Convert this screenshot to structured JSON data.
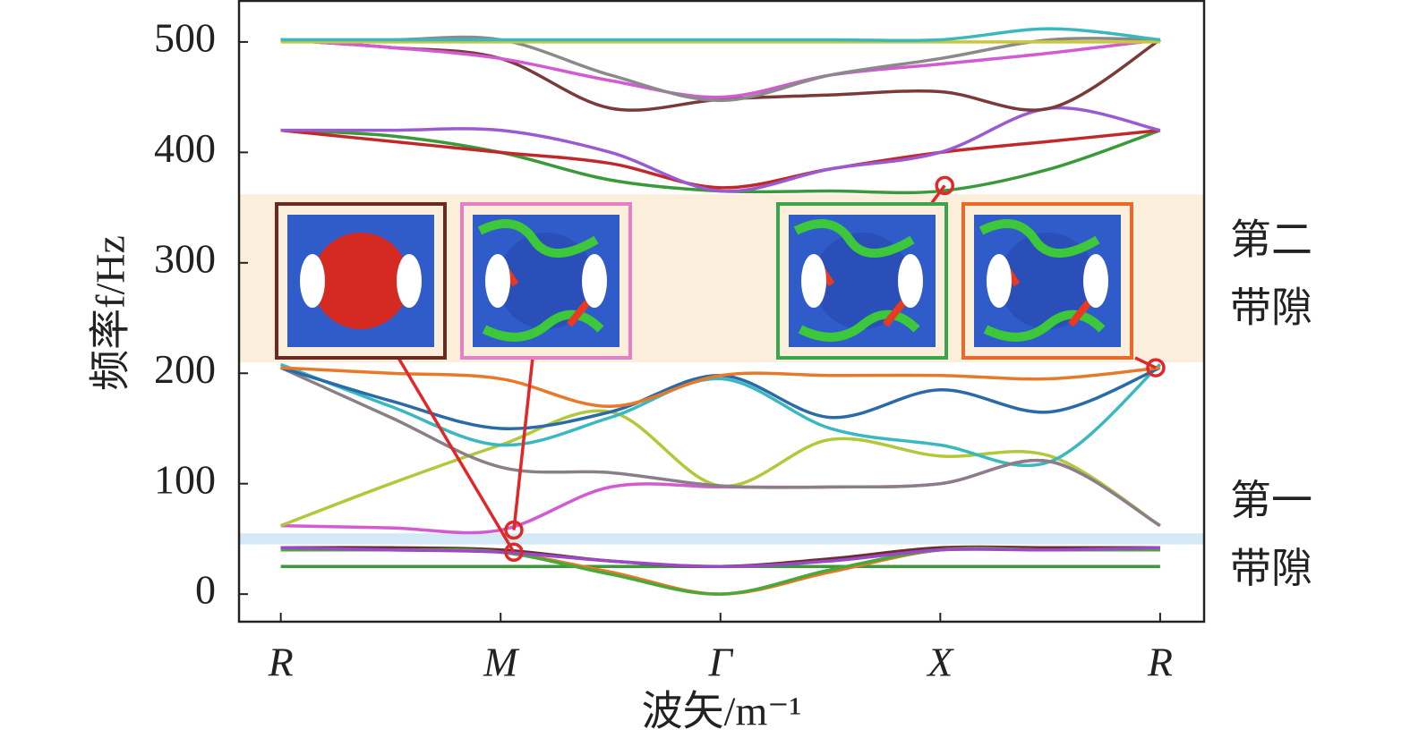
{
  "chart_data": {
    "type": "line",
    "y_label": "频率f/Hz",
    "x_label": "波矢/m⁻¹",
    "x": [
      0,
      0.5,
      1,
      1.5,
      2,
      2.5,
      3,
      3.5,
      4
    ],
    "xlim": [
      -0.19,
      4.2
    ],
    "ylim": [
      -25,
      538
    ],
    "xticks": [
      {
        "value": 0,
        "label": "R"
      },
      {
        "value": 1,
        "label": "M"
      },
      {
        "value": 2,
        "label": "Γ"
      },
      {
        "value": 3,
        "label": "X"
      },
      {
        "value": 4,
        "label": "R"
      }
    ],
    "yticks": [
      0,
      100,
      200,
      300,
      400,
      500
    ],
    "bands": [
      {
        "range": [
          45,
          55
        ],
        "color": "#d3e9f6",
        "label_lines": [
          "第一",
          "带隙"
        ]
      },
      {
        "range": [
          210,
          362
        ],
        "color": "#fbeedb",
        "label_lines": [
          "第二",
          "带隙"
        ]
      }
    ],
    "markers": [
      {
        "x": 1.06,
        "y": 38,
        "color": "#6b2a1f"
      },
      {
        "x": 1.06,
        "y": 58,
        "color": "#e47fc8"
      },
      {
        "x": 3.02,
        "y": 370,
        "color": "#3aa54a"
      },
      {
        "x": 3.98,
        "y": 205,
        "color": "#e8692a"
      }
    ],
    "series": [
      {
        "color": "#3a9a3a",
        "values": [
          25,
          25,
          25,
          25,
          25,
          25,
          25,
          25,
          25
        ]
      },
      {
        "color": "#6a2e2e",
        "values": [
          42,
          42,
          40,
          30,
          25,
          32,
          42,
          42,
          42
        ]
      },
      {
        "color": "#e8792a",
        "values": [
          40,
          40,
          38,
          20,
          0,
          20,
          40,
          40,
          40
        ]
      },
      {
        "color": "#4aa83a",
        "values": [
          40,
          40,
          38,
          18,
          0,
          22,
          40,
          40,
          40
        ]
      },
      {
        "color": "#9a4ac8",
        "values": [
          42,
          40,
          38,
          30,
          25,
          30,
          40,
          40,
          42
        ]
      },
      {
        "color": "#d25ad2",
        "values": [
          62,
          60,
          58,
          97,
          97,
          97,
          100,
          120,
          62
        ]
      },
      {
        "color": "#b2c83a",
        "values": [
          62,
          100,
          135,
          165,
          98,
          140,
          125,
          125,
          62
        ]
      },
      {
        "color": "#3ab8c0",
        "values": [
          208,
          170,
          135,
          160,
          195,
          150,
          135,
          120,
          208
        ]
      },
      {
        "color": "#8a7f88",
        "values": [
          205,
          160,
          115,
          110,
          98,
          97,
          100,
          120,
          62
        ]
      },
      {
        "color": "#2a6aa8",
        "values": [
          205,
          175,
          150,
          165,
          198,
          160,
          185,
          165,
          205
        ]
      },
      {
        "color": "#e8792a",
        "values": [
          205,
          200,
          195,
          170,
          198,
          198,
          198,
          195,
          205
        ]
      },
      {
        "color": "#3a9a3a",
        "values": [
          420,
          415,
          400,
          375,
          365,
          365,
          365,
          385,
          420
        ]
      },
      {
        "color": "#c0282a",
        "values": [
          420,
          410,
          400,
          390,
          368,
          385,
          400,
          410,
          420
        ]
      },
      {
        "color": "#9a5ad2",
        "values": [
          420,
          420,
          420,
          400,
          365,
          385,
          400,
          440,
          420
        ]
      },
      {
        "color": "#7a3a3a",
        "values": [
          502,
          495,
          485,
          440,
          448,
          452,
          455,
          440,
          502
        ]
      },
      {
        "color": "#d25ad2",
        "values": [
          502,
          495,
          485,
          465,
          450,
          470,
          480,
          490,
          502
        ]
      },
      {
        "color": "#8a8a8a",
        "values": [
          502,
          502,
          502,
          470,
          447,
          470,
          485,
          502,
          502
        ]
      },
      {
        "color": "#c8c83a",
        "values": [
          500,
          500,
          500,
          500,
          500,
          500,
          500,
          500,
          500
        ]
      },
      {
        "color": "#3ab8c0",
        "values": [
          502,
          502,
          502,
          502,
          502,
          502,
          502,
          512,
          502
        ]
      }
    ]
  }
}
